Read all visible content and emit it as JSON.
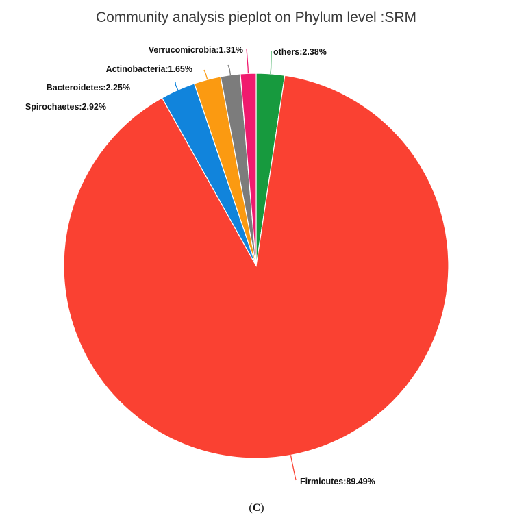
{
  "panel_label": {
    "open": "(",
    "letter": "C",
    "close": ")"
  },
  "chart_data": {
    "type": "pie",
    "title": "Community analysis pieplot on Phylum level :SRM",
    "slices": [
      {
        "name": "others",
        "value": 2.38,
        "label": "others:2.38%",
        "color": "#179a3e"
      },
      {
        "name": "Firmicutes",
        "value": 89.49,
        "label": "Firmicutes:89.49%",
        "color": "#fa4132"
      },
      {
        "name": "Spirochaetes",
        "value": 2.92,
        "label": "Spirochaetes:2.92%",
        "color": "#1184dc"
      },
      {
        "name": "Bacteroidetes",
        "value": 2.25,
        "label": "Bacteroidetes:2.25%",
        "color": "#fb9a11"
      },
      {
        "name": "Actinobacteria",
        "value": 1.65,
        "label": "Actinobacteria:1.65%",
        "color": "#7c7c7c"
      },
      {
        "name": "Verrucomicrobia",
        "value": 1.31,
        "label": "Verrucomicrobia:1.31%",
        "color": "#f01a6e"
      }
    ],
    "start": "12 o'clock",
    "direction": "clockwise",
    "legend": "none"
  }
}
